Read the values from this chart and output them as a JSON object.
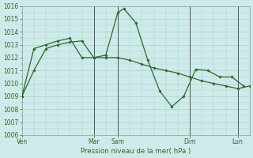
{
  "title": "Pression niveau de la mer( hPa )",
  "bg_color": "#ceeaea",
  "grid_color": "#a8d5cb",
  "line_color": "#2d6a2d",
  "ylim": [
    1006,
    1016
  ],
  "x_day_labels": [
    "Ven",
    "Mar",
    "Sam",
    "Dim",
    "Lun"
  ],
  "x_day_positions": [
    0,
    3,
    4,
    7,
    9
  ],
  "xmin": 0,
  "xmax": 9.5,
  "series1_x": [
    0,
    0.5,
    1.0,
    1.5,
    2.0,
    2.5,
    3.0,
    3.5,
    4.0,
    4.25,
    4.75,
    5.25,
    5.75,
    6.25,
    6.75,
    7.25,
    7.75,
    8.25,
    8.75,
    9.25
  ],
  "series1_y": [
    1009,
    1011,
    1012.7,
    1013.0,
    1013.2,
    1013.3,
    1012.0,
    1012.2,
    1015.5,
    1015.8,
    1014.7,
    1011.8,
    1009.4,
    1008.2,
    1009.0,
    1011.1,
    1011.0,
    1010.5,
    1010.5,
    1009.8
  ],
  "series2_x": [
    0,
    0.5,
    1.0,
    1.5,
    2.0,
    2.5,
    3.0,
    3.5,
    4.0,
    4.5,
    5.0,
    5.5,
    6.0,
    6.5,
    7.0,
    7.5,
    8.0,
    8.5,
    9.0,
    9.5
  ],
  "series2_y": [
    1009,
    1012.7,
    1013.0,
    1013.3,
    1013.5,
    1012.0,
    1012.0,
    1012.0,
    1012.0,
    1011.8,
    1011.5,
    1011.2,
    1011.0,
    1010.8,
    1010.5,
    1010.2,
    1010.0,
    1009.8,
    1009.6,
    1009.8
  ],
  "vline_positions": [
    3,
    4,
    7,
    9
  ],
  "vline_color": "#555555"
}
